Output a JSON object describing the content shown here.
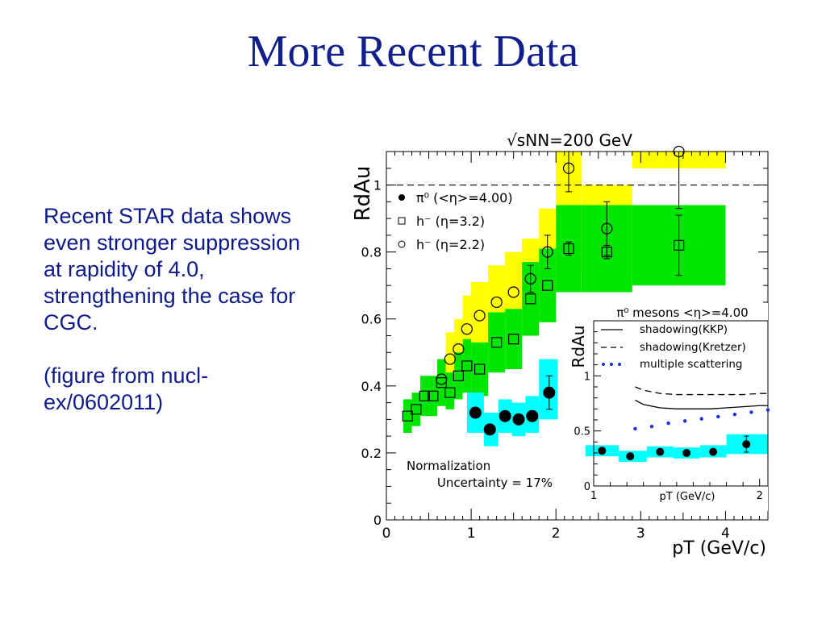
{
  "slide": {
    "title": "More Recent Data",
    "text_paragraphs": [
      "Recent STAR data shows even stronger suppression at rapidity of 4.0, strengthening the case for CGC.",
      "(figure from nucl-ex/0602011)"
    ]
  },
  "colors": {
    "yellow_band": "#ffff00",
    "green_band": "#00e600",
    "cyan_band": "#00ffff",
    "title": "#101f8c",
    "blue_dots": "#1a2ee0"
  },
  "chart_data": [
    {
      "type": "scatter",
      "title": "√sNN=200 GeV",
      "xlabel": "pT (GeV/c)",
      "ylabel": "RdAu",
      "xlim": [
        0,
        4.5
      ],
      "ylim": [
        0,
        1.1
      ],
      "xticks": [
        "0",
        "1",
        "2",
        "3",
        "4"
      ],
      "yticks": [
        "0",
        "0.2",
        "0.4",
        "0.6",
        "0.8",
        "1"
      ],
      "reference_line_y": 1,
      "legend_position": "top-left",
      "legend": [
        "π⁰ (<η>=4.00)",
        "h⁻ (η=3.2)",
        "h⁻ (η=2.2)"
      ],
      "annotation": [
        "Normalization",
        "Uncertainty = 17%"
      ],
      "series": [
        {
          "name": "π⁰ (<η>=4.00)",
          "marker": "filled-circle",
          "band_color": "cyan",
          "points": [
            {
              "x": 1.05,
              "y": 0.32,
              "err": 0,
              "bx0": 0.95,
              "bx1": 1.15,
              "blo": 0.26,
              "bhi": 0.38
            },
            {
              "x": 1.22,
              "y": 0.27,
              "err": 0,
              "bx0": 1.15,
              "bx1": 1.32,
              "blo": 0.22,
              "bhi": 0.32
            },
            {
              "x": 1.4,
              "y": 0.31,
              "err": 0,
              "bx0": 1.32,
              "bx1": 1.48,
              "blo": 0.26,
              "bhi": 0.36
            },
            {
              "x": 1.56,
              "y": 0.3,
              "err": 0,
              "bx0": 1.48,
              "bx1": 1.64,
              "blo": 0.25,
              "bhi": 0.35
            },
            {
              "x": 1.72,
              "y": 0.31,
              "err": 0,
              "bx0": 1.64,
              "bx1": 1.8,
              "blo": 0.26,
              "bhi": 0.37
            },
            {
              "x": 1.92,
              "y": 0.38,
              "err": 0.05,
              "bx0": 1.8,
              "bx1": 2.02,
              "blo": 0.3,
              "bhi": 0.48
            }
          ]
        },
        {
          "name": "h⁻ (η=3.2)",
          "marker": "open-square",
          "band_color": "green",
          "points": [
            {
              "x": 0.25,
              "y": 0.31,
              "err": 0,
              "bx0": 0.2,
              "bx1": 0.3,
              "blo": 0.26,
              "bhi": 0.36
            },
            {
              "x": 0.35,
              "y": 0.33,
              "err": 0,
              "bx0": 0.3,
              "bx1": 0.4,
              "blo": 0.28,
              "bhi": 0.38
            },
            {
              "x": 0.45,
              "y": 0.37,
              "err": 0,
              "bx0": 0.4,
              "bx1": 0.5,
              "blo": 0.31,
              "bhi": 0.43
            },
            {
              "x": 0.55,
              "y": 0.37,
              "err": 0,
              "bx0": 0.5,
              "bx1": 0.6,
              "blo": 0.31,
              "bhi": 0.43
            },
            {
              "x": 0.65,
              "y": 0.41,
              "err": 0,
              "bx0": 0.6,
              "bx1": 0.7,
              "blo": 0.34,
              "bhi": 0.48
            },
            {
              "x": 0.75,
              "y": 0.38,
              "err": 0,
              "bx0": 0.7,
              "bx1": 0.8,
              "blo": 0.33,
              "bhi": 0.44
            },
            {
              "x": 0.85,
              "y": 0.43,
              "err": 0,
              "bx0": 0.8,
              "bx1": 0.9,
              "blo": 0.36,
              "bhi": 0.5
            },
            {
              "x": 0.95,
              "y": 0.46,
              "err": 0,
              "bx0": 0.9,
              "bx1": 1.0,
              "blo": 0.38,
              "bhi": 0.54
            },
            {
              "x": 1.1,
              "y": 0.45,
              "err": 0,
              "bx0": 1.0,
              "bx1": 1.2,
              "blo": 0.37,
              "bhi": 0.53
            },
            {
              "x": 1.3,
              "y": 0.53,
              "err": 0,
              "bx0": 1.2,
              "bx1": 1.4,
              "blo": 0.44,
              "bhi": 0.62
            },
            {
              "x": 1.5,
              "y": 0.54,
              "err": 0,
              "bx0": 1.4,
              "bx1": 1.6,
              "blo": 0.45,
              "bhi": 0.63
            },
            {
              "x": 1.7,
              "y": 0.66,
              "err": 0,
              "bx0": 1.6,
              "bx1": 1.8,
              "blo": 0.55,
              "bhi": 0.77
            },
            {
              "x": 1.9,
              "y": 0.7,
              "err": 0,
              "bx0": 1.8,
              "bx1": 2.0,
              "blo": 0.59,
              "bhi": 0.81
            },
            {
              "x": 2.15,
              "y": 0.81,
              "err": 0.02,
              "bx0": 2.0,
              "bx1": 2.3,
              "blo": 0.68,
              "bhi": 0.94
            },
            {
              "x": 2.6,
              "y": 0.8,
              "err": 0.02,
              "bx0": 2.3,
              "bx1": 2.9,
              "blo": 0.68,
              "bhi": 0.94
            },
            {
              "x": 3.45,
              "y": 0.82,
              "err": 0.09,
              "bx0": 2.9,
              "bx1": 4.0,
              "blo": 0.7,
              "bhi": 0.94
            }
          ]
        },
        {
          "name": "h⁻ (η=2.2)",
          "marker": "open-circle",
          "band_color": "yellow",
          "points": [
            {
              "x": 0.65,
              "y": 0.42,
              "err": 0,
              "bx0": 0.6,
              "bx1": 0.7,
              "blo": 0.36,
              "bhi": 0.48
            },
            {
              "x": 0.75,
              "y": 0.48,
              "err": 0,
              "bx0": 0.7,
              "bx1": 0.8,
              "blo": 0.41,
              "bhi": 0.56
            },
            {
              "x": 0.85,
              "y": 0.51,
              "err": 0,
              "bx0": 0.8,
              "bx1": 0.9,
              "blo": 0.43,
              "bhi": 0.6
            },
            {
              "x": 0.95,
              "y": 0.57,
              "err": 0,
              "bx0": 0.9,
              "bx1": 1.0,
              "blo": 0.48,
              "bhi": 0.67
            },
            {
              "x": 1.1,
              "y": 0.61,
              "err": 0,
              "bx0": 1.0,
              "bx1": 1.2,
              "blo": 0.51,
              "bhi": 0.71
            },
            {
              "x": 1.3,
              "y": 0.65,
              "err": 0,
              "bx0": 1.2,
              "bx1": 1.4,
              "blo": 0.55,
              "bhi": 0.76
            },
            {
              "x": 1.5,
              "y": 0.68,
              "err": 0,
              "bx0": 1.4,
              "bx1": 1.6,
              "blo": 0.57,
              "bhi": 0.8
            },
            {
              "x": 1.7,
              "y": 0.72,
              "err": 0.04,
              "bx0": 1.6,
              "bx1": 1.8,
              "blo": 0.61,
              "bhi": 0.84
            },
            {
              "x": 1.9,
              "y": 0.8,
              "err": 0.05,
              "bx0": 1.8,
              "bx1": 2.0,
              "blo": 0.67,
              "bhi": 0.93
            },
            {
              "x": 2.15,
              "y": 1.05,
              "err": 0.07,
              "bx0": 2.0,
              "bx1": 2.3,
              "blo": 0.9,
              "bhi": 1.1
            },
            {
              "x": 2.6,
              "y": 0.87,
              "err": 0.08,
              "bx0": 2.3,
              "bx1": 2.9,
              "blo": 0.74,
              "bhi": 1.0
            },
            {
              "x": 3.45,
              "y": 1.1,
              "err": 0.17,
              "bx0": 2.9,
              "bx1": 4.0,
              "blo": 1.05,
              "bhi": 1.1
            }
          ]
        }
      ]
    },
    {
      "type": "line",
      "title": "π⁰ mesons <η>=4.00",
      "xlabel": "pT (GeV/c)",
      "ylabel": "RdAu",
      "xlim": [
        1,
        2.05
      ],
      "ylim": [
        0,
        1.5
      ],
      "xticks": [
        "1",
        "2"
      ],
      "yticks": [
        "0",
        "0.5",
        "1"
      ],
      "legend_position": "top-right",
      "legend": [
        "shadowing(KKP)",
        "shadowing(Kretzer)",
        "multiple scattering"
      ],
      "series": [
        {
          "name": "shadowing(KKP)",
          "style": "solid",
          "x": [
            1.25,
            1.3,
            1.4,
            1.5,
            1.6,
            1.7,
            1.8,
            1.9,
            2.0,
            2.05
          ],
          "y": [
            0.78,
            0.74,
            0.71,
            0.7,
            0.7,
            0.7,
            0.71,
            0.72,
            0.73,
            0.73
          ]
        },
        {
          "name": "shadowing(Kretzer)",
          "style": "dashed",
          "x": [
            1.25,
            1.3,
            1.4,
            1.5,
            1.6,
            1.7,
            1.8,
            1.9,
            2.0,
            2.05
          ],
          "y": [
            0.9,
            0.87,
            0.84,
            0.83,
            0.83,
            0.83,
            0.83,
            0.83,
            0.84,
            0.84
          ]
        },
        {
          "name": "multiple scattering",
          "style": "dotted",
          "x": [
            1.25,
            1.35,
            1.45,
            1.55,
            1.65,
            1.75,
            1.85,
            1.95,
            2.05
          ],
          "y": [
            0.52,
            0.54,
            0.57,
            0.59,
            0.61,
            0.63,
            0.65,
            0.67,
            0.69
          ]
        },
        {
          "name": "π⁰ data",
          "style": "markers",
          "x": [
            1.05,
            1.22,
            1.4,
            1.56,
            1.72,
            1.92
          ],
          "y": [
            0.32,
            0.27,
            0.31,
            0.3,
            0.31,
            0.38
          ],
          "bands": [
            [
              0.95,
              1.15,
              0.27,
              0.37
            ],
            [
              1.15,
              1.32,
              0.22,
              0.32
            ],
            [
              1.32,
              1.48,
              0.26,
              0.36
            ],
            [
              1.48,
              1.64,
              0.25,
              0.35
            ],
            [
              1.64,
              1.8,
              0.26,
              0.37
            ],
            [
              1.8,
              2.05,
              0.29,
              0.47
            ]
          ]
        }
      ]
    }
  ]
}
